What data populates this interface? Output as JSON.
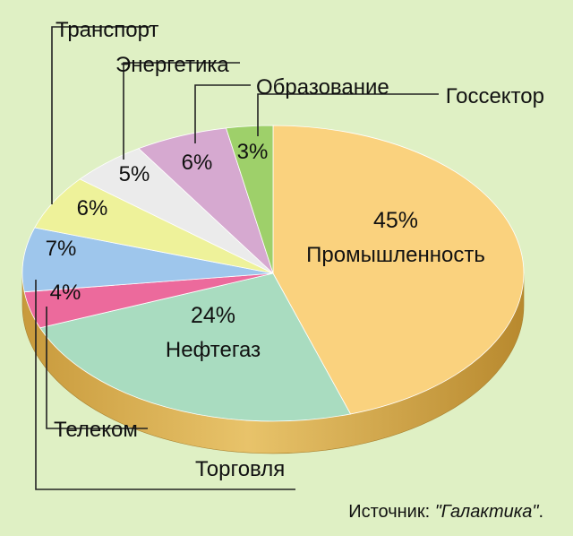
{
  "chart_data": {
    "type": "pie",
    "title": "",
    "labels": [
      "Промышленность",
      "Нефтегаз",
      "Торговля",
      "Телеком",
      "Транспорт",
      "Энергетика",
      "Образование",
      "Госсектор"
    ],
    "values": [
      45,
      24,
      4,
      7,
      6,
      5,
      6,
      3
    ],
    "value_labels": [
      "45%",
      "24%",
      "4%",
      "7%",
      "6%",
      "5%",
      "6%",
      "3%"
    ],
    "colors": [
      "#fad27e",
      "#a9dcc0",
      "#ec6a9c",
      "#9ec6ec",
      "#eef29a",
      "#ebebeb",
      "#d6a9d0",
      "#9ed06a"
    ],
    "legend": "callouts"
  },
  "source": {
    "prefix": "Источник: ",
    "name": "\"Галактика\"",
    "suffix": "."
  },
  "colors": {
    "background": "#dff0c4",
    "pie_side": "#d9b258",
    "leader_lines": "#222222"
  }
}
